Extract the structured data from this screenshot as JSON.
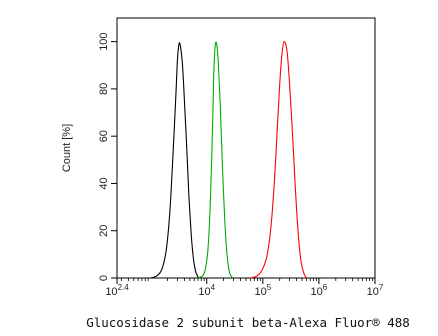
{
  "chart_data": {
    "type": "line",
    "title": "",
    "xlabel": "Glucosidase 2 subunit beta-Alexa Fluor® 488",
    "ylabel": "Count [%]",
    "x_scale": "log",
    "xlim": [
      251.19,
      10000000
    ],
    "ylim": [
      0,
      110
    ],
    "x_ticks": [
      {
        "value": 251.19,
        "base": "10",
        "exp": "2.4"
      },
      {
        "value": 10000,
        "base": "10",
        "exp": "4"
      },
      {
        "value": 100000,
        "base": "10",
        "exp": "5"
      },
      {
        "value": 1000000,
        "base": "10",
        "exp": "6"
      },
      {
        "value": 10000000,
        "base": "10",
        "exp": "7"
      }
    ],
    "y_ticks": [
      "0",
      "20",
      "40",
      "60",
      "80",
      "100"
    ],
    "grid": false,
    "series": [
      {
        "color": "#000000",
        "x": [
          1000,
          1300,
          1600,
          1900,
          2200,
          2500,
          2800,
          3000,
          3200,
          3400,
          3700,
          4000,
          4400,
          4800,
          5300,
          5800,
          6300,
          6800,
          7200
        ],
        "y": [
          0,
          1,
          4,
          12,
          28,
          52,
          76,
          92,
          99,
          98,
          90,
          75,
          55,
          35,
          18,
          8,
          3,
          1,
          0
        ]
      },
      {
        "color": "#00aa00",
        "x": [
          7000,
          8500,
          9500,
          10500,
          11500,
          12500,
          13300,
          14100,
          15000,
          16000,
          17500,
          19000,
          21000,
          23000,
          25000,
          27000,
          29000
        ],
        "y": [
          0,
          1,
          4,
          12,
          30,
          58,
          85,
          98,
          99,
          92,
          72,
          48,
          24,
          10,
          3,
          1,
          0
        ]
      },
      {
        "color": "#ff0000",
        "x": [
          60000,
          80000,
          100000,
          120000,
          140000,
          160000,
          180000,
          200000,
          220000,
          240000,
          270000,
          300000,
          340000,
          380000,
          430000,
          480000,
          540000,
          600000
        ],
        "y": [
          0,
          1,
          4,
          10,
          22,
          40,
          62,
          82,
          95,
          100,
          96,
          82,
          60,
          38,
          18,
          7,
          2,
          0
        ]
      }
    ]
  }
}
